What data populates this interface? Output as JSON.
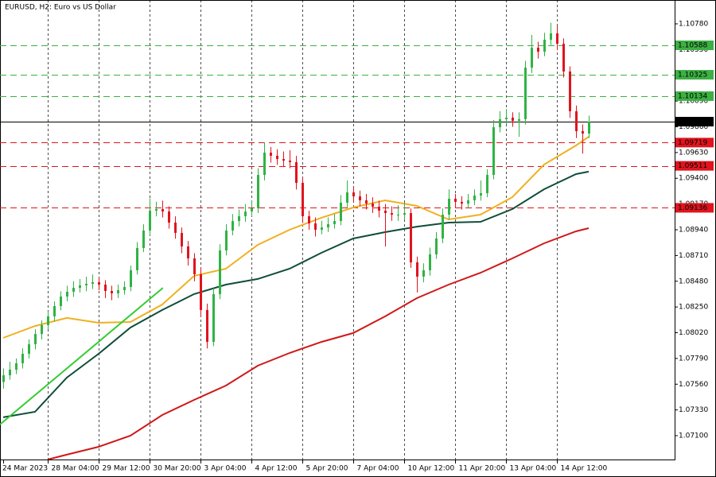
{
  "chart_data": {
    "type": "candlestick",
    "title": "EURUSD, H2:  Euro vs US Dollar",
    "x": [
      "24 Mar 2023",
      null,
      null,
      null,
      null,
      null,
      null,
      "28 Mar 04:00",
      null,
      null,
      null,
      null,
      null,
      null,
      null,
      "29 Mar 12:00",
      null,
      null,
      null,
      null,
      null,
      null,
      null,
      "30 Mar 20:00",
      null,
      null,
      null,
      null,
      null,
      null,
      null,
      "3 Apr 04:00",
      null,
      null,
      null,
      null,
      null,
      null,
      null,
      "4 Apr 12:00",
      null,
      null,
      null,
      null,
      null,
      null,
      null,
      "5 Apr 20:00",
      null,
      null,
      null,
      null,
      null,
      null,
      null,
      "7 Apr 04:00",
      null,
      null,
      null,
      null,
      null,
      null,
      null,
      "10 Apr 12:00",
      null,
      null,
      null,
      null,
      null,
      null,
      null,
      "11 Apr 20:00",
      null,
      null,
      null,
      null,
      null,
      null,
      null,
      "13 Apr 04:00",
      null,
      null,
      null,
      null,
      null,
      null,
      null,
      "14 Apr 12:00",
      null,
      null,
      null,
      null,
      null
    ],
    "xlim": [
      -0.5,
      105.5
    ],
    "ohlc": [
      [
        1.0758,
        1.077,
        1.0752,
        1.0764
      ],
      [
        1.0764,
        1.0776,
        1.076,
        1.0769
      ],
      [
        1.0769,
        1.0779,
        1.0765,
        1.07747
      ],
      [
        1.07747,
        1.0788,
        1.077,
        1.07832
      ],
      [
        1.07832,
        1.0796,
        1.0779,
        1.07917
      ],
      [
        1.07917,
        1.0805,
        1.0787,
        1.08009
      ],
      [
        1.08009,
        1.0813,
        1.0796,
        1.08088
      ],
      [
        1.08088,
        1.0821,
        1.0805,
        1.08166
      ],
      [
        1.08166,
        1.083,
        1.0812,
        1.08258
      ],
      [
        1.08258,
        1.0839,
        1.0822,
        1.08343
      ],
      [
        1.08343,
        1.0844,
        1.083,
        1.08386
      ],
      [
        1.08386,
        1.0848,
        1.0834,
        1.08421
      ],
      [
        1.08421,
        1.085,
        1.0838,
        1.08443
      ],
      [
        1.08443,
        1.0852,
        1.0839,
        1.08457
      ],
      [
        1.08457,
        1.0854,
        1.0841,
        1.08471
      ],
      [
        1.08471,
        1.0851,
        1.084,
        1.0845
      ],
      [
        1.0845,
        1.0849,
        1.0833,
        1.08393
      ],
      [
        1.08393,
        1.0844,
        1.0831,
        1.08372
      ],
      [
        1.08372,
        1.0845,
        1.0833,
        1.084
      ],
      [
        1.084,
        1.0848,
        1.0836,
        1.08429
      ],
      [
        1.08429,
        1.0862,
        1.0839,
        1.08578
      ],
      [
        1.08578,
        1.0883,
        1.0854,
        1.08777
      ],
      [
        1.08777,
        1.0899,
        1.0874,
        1.08933
      ],
      [
        1.08933,
        1.0922,
        1.0889,
        1.09111
      ],
      [
        1.09111,
        1.0919,
        1.0906,
        1.09125
      ],
      [
        1.09125,
        1.092,
        1.0905,
        1.09103
      ],
      [
        1.09103,
        1.0915,
        1.0895,
        1.09004
      ],
      [
        1.09004,
        1.0906,
        1.0886,
        1.08912
      ],
      [
        1.08912,
        1.0896,
        1.0873,
        1.08791
      ],
      [
        1.08791,
        1.0884,
        1.0862,
        1.08684
      ],
      [
        1.08684,
        1.0873,
        1.0848,
        1.08542
      ],
      [
        1.08542,
        1.086,
        1.0816,
        1.08223
      ],
      [
        1.08223,
        1.0828,
        1.0788,
        1.07938
      ],
      [
        1.07938,
        1.0842,
        1.079,
        1.08365
      ],
      [
        1.08365,
        1.0881,
        1.0832,
        1.08755
      ],
      [
        1.08755,
        1.0899,
        1.0871,
        1.08933
      ],
      [
        1.08933,
        1.0908,
        1.0889,
        1.09018
      ],
      [
        1.09018,
        1.0912,
        1.0897,
        1.09061
      ],
      [
        1.09061,
        1.0917,
        1.0901,
        1.09103
      ],
      [
        1.09103,
        1.092,
        1.0906,
        1.09132
      ],
      [
        1.09132,
        1.0949,
        1.0909,
        1.0943
      ],
      [
        1.0943,
        1.0972,
        1.0938,
        1.09629
      ],
      [
        1.09629,
        1.0968,
        1.0954,
        1.09601
      ],
      [
        1.09601,
        1.0966,
        1.0952,
        1.09572
      ],
      [
        1.09572,
        1.0964,
        1.095,
        1.09558
      ],
      [
        1.09558,
        1.0965,
        1.0949,
        1.09544
      ],
      [
        1.09544,
        1.096,
        1.093,
        1.09359
      ],
      [
        1.09359,
        1.0941,
        1.09,
        1.09061
      ],
      [
        1.09061,
        1.0911,
        1.0894,
        1.08997
      ],
      [
        1.08997,
        1.0905,
        1.0888,
        1.0894
      ],
      [
        1.0894,
        1.0902,
        1.089,
        1.08961
      ],
      [
        1.08961,
        1.0905,
        1.0892,
        1.0899
      ],
      [
        1.0899,
        1.0908,
        1.0895,
        1.09018
      ],
      [
        1.09018,
        1.0925,
        1.0898,
        1.09182
      ],
      [
        1.09182,
        1.0938,
        1.0914,
        1.09274
      ],
      [
        1.09274,
        1.0932,
        1.0919,
        1.09238
      ],
      [
        1.09238,
        1.0929,
        1.0915,
        1.09203
      ],
      [
        1.09203,
        1.0926,
        1.0912,
        1.09174
      ],
      [
        1.09174,
        1.0923,
        1.0909,
        1.09146
      ],
      [
        1.09146,
        1.092,
        1.0905,
        1.09111
      ],
      [
        1.09111,
        1.0917,
        1.0879,
        1.09089
      ],
      [
        1.09089,
        1.0915,
        1.0902,
        1.09075
      ],
      [
        1.09075,
        1.0916,
        1.0902,
        1.09075
      ],
      [
        1.09075,
        1.0918,
        1.0903,
        1.09089
      ],
      [
        1.09089,
        1.0913,
        1.086,
        1.08649
      ],
      [
        1.08649,
        1.087,
        1.0838,
        1.08521
      ],
      [
        1.08521,
        1.0864,
        1.0847,
        1.08578
      ],
      [
        1.08578,
        1.0878,
        1.0853,
        1.0872
      ],
      [
        1.0872,
        1.0892,
        1.0868,
        1.08862
      ],
      [
        1.08862,
        1.0913,
        1.0882,
        1.09075
      ],
      [
        1.09075,
        1.093,
        1.0903,
        1.09217
      ],
      [
        1.09217,
        1.0926,
        1.0914,
        1.09189
      ],
      [
        1.09189,
        1.0924,
        1.0912,
        1.09174
      ],
      [
        1.09174,
        1.0926,
        1.0913,
        1.09203
      ],
      [
        1.09203,
        1.093,
        1.0916,
        1.09246
      ],
      [
        1.09246,
        1.0938,
        1.092,
        1.09267
      ],
      [
        1.09267,
        1.0948,
        1.0923,
        1.0943
      ],
      [
        1.0943,
        1.0992,
        1.0939,
        1.09856
      ],
      [
        1.09856,
        1.1,
        1.0981,
        1.09928
      ],
      [
        1.09928,
        1.1002,
        1.0988,
        1.09942
      ],
      [
        1.09942,
        1.0999,
        1.0986,
        1.09913
      ],
      [
        1.09913,
        1.0999,
        1.0977,
        1.09928
      ],
      [
        1.09928,
        1.1045,
        1.0988,
        1.10389
      ],
      [
        1.10389,
        1.1068,
        1.1034,
        1.10567
      ],
      [
        1.10567,
        1.1062,
        1.1047,
        1.10531
      ],
      [
        1.10531,
        1.107,
        1.1049,
        1.10638
      ],
      [
        1.10638,
        1.1079,
        1.1059,
        1.10695
      ],
      [
        1.10695,
        1.1076,
        1.1055,
        1.10602
      ],
      [
        1.10602,
        1.1065,
        1.103,
        1.10354
      ],
      [
        1.10354,
        1.104,
        1.0994,
        1.09999
      ],
      [
        1.09999,
        1.1005,
        1.0976,
        1.09821
      ],
      [
        1.09821,
        1.0988,
        1.0962,
        1.098
      ],
      [
        1.098,
        1.0996,
        1.0976,
        1.09906
      ]
    ],
    "up_color": "#2fb344",
    "down_color": "#e0141e",
    "ylim": [
      1.06887,
      1.10993
    ],
    "yticks": [
      {
        "value": 1.071,
        "label": "1.07100"
      },
      {
        "value": 1.0733,
        "label": "1.07330"
      },
      {
        "value": 1.0756,
        "label": "1.07560"
      },
      {
        "value": 1.0779,
        "label": "1.07790"
      },
      {
        "value": 1.0802,
        "label": "1.08020"
      },
      {
        "value": 1.0825,
        "label": "1.08250"
      },
      {
        "value": 1.0848,
        "label": "1.08480"
      },
      {
        "value": 1.0871,
        "label": "1.08710"
      },
      {
        "value": 1.0894,
        "label": "1.08940"
      },
      {
        "value": 1.0917,
        "label": "1.09170"
      },
      {
        "value": 1.094,
        "label": "1.09400"
      },
      {
        "value": 1.0963,
        "label": "1.09630"
      },
      {
        "value": 1.0986,
        "label": "1.09860"
      },
      {
        "value": 1.1009,
        "label": "1.10090"
      },
      {
        "value": 1.1032,
        "label": "1.10320"
      },
      {
        "value": 1.1055,
        "label": "1.10550"
      },
      {
        "value": 1.1078,
        "label": "1.10780"
      }
    ],
    "grid": true,
    "lines": [
      {
        "color": "#f0b020",
        "x": [
          0,
          5,
          10,
          15,
          20,
          25,
          30,
          35,
          40,
          45,
          50,
          55,
          60,
          65,
          70,
          75,
          80,
          85,
          90,
          92
        ],
        "values": [
          1.07974,
          1.0808,
          1.08152,
          1.08109,
          1.08116,
          1.08272,
          1.08528,
          1.08592,
          1.08805,
          1.0894,
          1.09047,
          1.09139,
          1.09203,
          1.09153,
          1.09032,
          1.09075,
          1.09231,
          1.09523,
          1.09693,
          1.09771
        ]
      },
      {
        "color": "#0f4d3a",
        "x": [
          0,
          5,
          10,
          15,
          20,
          25,
          30,
          35,
          40,
          45,
          50,
          55,
          60,
          65,
          70,
          75,
          80,
          85,
          90,
          92
        ],
        "values": [
          1.07264,
          1.07313,
          1.07619,
          1.07832,
          1.08066,
          1.08223,
          1.08365,
          1.0845,
          1.085,
          1.08592,
          1.08734,
          1.08862,
          1.08919,
          1.08968,
          1.09004,
          1.09011,
          1.09125,
          1.09302,
          1.09437,
          1.09459
        ]
      },
      {
        "color": "#d01818",
        "x": [
          7,
          10,
          15,
          20,
          25,
          30,
          35,
          40,
          45,
          50,
          55,
          60,
          65,
          70,
          75,
          80,
          85,
          90,
          92
        ],
        "values": [
          1.06887,
          1.0693,
          1.07001,
          1.071,
          1.07285,
          1.0742,
          1.07548,
          1.07725,
          1.07839,
          1.07938,
          1.08017,
          1.08166,
          1.08329,
          1.0845,
          1.08556,
          1.08684,
          1.08819,
          1.08926,
          1.08954
        ]
      }
    ],
    "trendline": {
      "color": "#33cc33",
      "x": [
        -0.5,
        25.1
      ],
      "values": [
        1.072,
        1.08421
      ]
    },
    "levels": [
      {
        "value": 1.10588,
        "color": "#3cb043",
        "style": "dashed"
      },
      {
        "value": 1.10325,
        "color": "#3cb043",
        "style": "dashed"
      },
      {
        "value": 1.10134,
        "color": "#3cb043",
        "style": "dashed"
      },
      {
        "value": 1.09906,
        "color": "#000000",
        "style": "solid"
      },
      {
        "value": 1.09719,
        "color": "#e0141e",
        "style": "dashed"
      },
      {
        "value": 1.09511,
        "color": "#e0141e",
        "style": "dashed"
      },
      {
        "value": 1.09136,
        "color": "#e0141e",
        "style": "dashed"
      }
    ]
  }
}
